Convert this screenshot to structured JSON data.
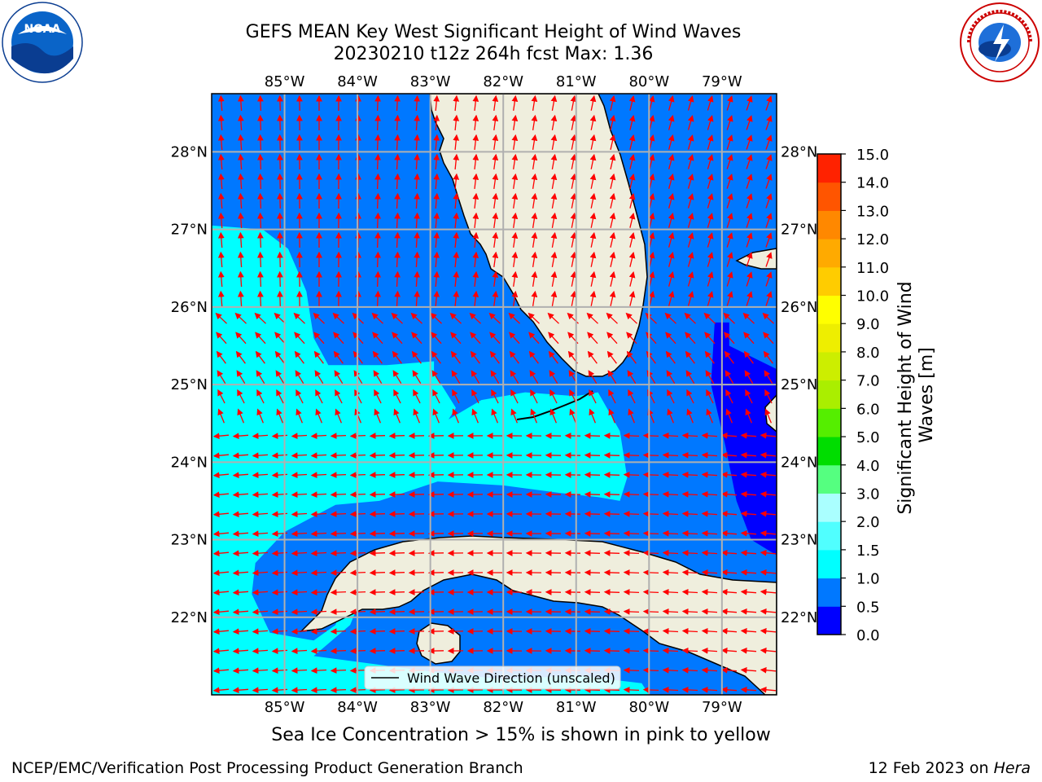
{
  "title": {
    "line1": "GEFS MEAN Key West Significant Height of Wind Waves",
    "line2": "20230210 t12z 264h fcst   Max: 1.36"
  },
  "logos": {
    "left": {
      "icon": "noaa-logo",
      "text": "NOAA",
      "ring_text": "NATIONAL OCEANIC AND ATMOSPHERIC ADMINISTRATION · U.S. DEPARTMENT OF COMMERCE"
    },
    "right": {
      "icon": "nws-logo",
      "ring_text": "NATIONAL WEATHER SERVICE"
    }
  },
  "map": {
    "lon_range": [
      -86.0,
      -78.25
    ],
    "lat_range": [
      21.0,
      28.75
    ],
    "lon_ticks": [
      -85,
      -84,
      -83,
      -82,
      -81,
      -80,
      -79
    ],
    "lon_tick_labels": [
      "85°W",
      "84°W",
      "83°W",
      "82°W",
      "81°W",
      "80°W",
      "79°W"
    ],
    "lat_ticks": [
      22,
      23,
      24,
      25,
      26,
      27,
      28
    ],
    "lat_tick_labels": [
      "22°N",
      "23°N",
      "24°N",
      "25°N",
      "26°N",
      "27°N",
      "28°N"
    ],
    "legend_label": "Wind Wave Direction (unscaled)",
    "colors": {
      "land": "#efeedd",
      "gridline": "#b0b0b0",
      "arrow": "#ff0000",
      "coast": "#000000"
    }
  },
  "colorbar": {
    "label": "Significant Height of Wind Waves [m]",
    "ticks": [
      "0.0",
      "0.5",
      "1.0",
      "1.5",
      "2.0",
      "3.0",
      "4.0",
      "5.0",
      "6.0",
      "7.0",
      "8.0",
      "9.0",
      "10.0",
      "11.0",
      "12.0",
      "13.0",
      "14.0",
      "15.0"
    ],
    "colors": [
      "#0000ff",
      "#0078ff",
      "#00ffff",
      "#50ffff",
      "#aaffff",
      "#55ff80",
      "#00dd00",
      "#55ee00",
      "#aaee00",
      "#ccee00",
      "#eeee00",
      "#ffff00",
      "#ffcc00",
      "#ffaa00",
      "#ff8800",
      "#ff5500",
      "#ff2200"
    ]
  },
  "chart_data": {
    "type": "heatmap",
    "variable": "Significant Height of Wind Waves [m]",
    "max_value": 1.36,
    "levels": [
      0.0,
      0.5,
      1.0,
      1.5,
      2.0,
      3.0,
      4.0,
      5.0,
      6.0,
      7.0,
      8.0,
      9.0,
      10.0,
      11.0,
      12.0,
      13.0,
      14.0,
      15.0
    ],
    "regions": [
      {
        "band": "0.5-1.0",
        "color": "#0078ff",
        "polygon_lonlat": [
          [
            -86.0,
            28.75
          ],
          [
            -83.1,
            28.75
          ],
          [
            -83.1,
            28.5
          ],
          [
            -83.0,
            28.3
          ],
          [
            -82.9,
            28.0
          ],
          [
            -82.8,
            27.6
          ],
          [
            -82.6,
            27.2
          ],
          [
            -82.3,
            26.6
          ],
          [
            -81.95,
            26.05
          ],
          [
            -81.6,
            25.4
          ],
          [
            -81.4,
            25.2
          ],
          [
            -81.7,
            24.9
          ],
          [
            -82.3,
            24.8
          ],
          [
            -82.75,
            24.55
          ],
          [
            -82.65,
            24.7
          ],
          [
            -82.95,
            25.15
          ],
          [
            -82.95,
            25.3
          ],
          [
            -83.6,
            25.25
          ],
          [
            -84.4,
            25.25
          ],
          [
            -84.6,
            25.6
          ],
          [
            -84.7,
            26.2
          ],
          [
            -84.95,
            26.75
          ],
          [
            -85.3,
            27.0
          ],
          [
            -85.9,
            27.05
          ],
          [
            -86.0,
            27.05
          ]
        ]
      },
      {
        "band": "1.0-1.5",
        "color": "#00ffff",
        "polygon_lonlat": [
          [
            -86.0,
            27.05
          ],
          [
            -85.3,
            27.0
          ],
          [
            -84.95,
            26.75
          ],
          [
            -84.7,
            26.2
          ],
          [
            -84.6,
            25.6
          ],
          [
            -84.4,
            25.25
          ],
          [
            -83.6,
            25.25
          ],
          [
            -82.95,
            25.3
          ],
          [
            -82.95,
            25.15
          ],
          [
            -82.65,
            24.7
          ],
          [
            -82.75,
            24.55
          ],
          [
            -82.3,
            24.8
          ],
          [
            -81.7,
            24.9
          ],
          [
            -81.0,
            24.85
          ],
          [
            -80.7,
            24.9
          ],
          [
            -80.4,
            24.4
          ],
          [
            -80.3,
            23.8
          ],
          [
            -80.4,
            23.5
          ],
          [
            -80.7,
            23.55
          ],
          [
            -81.2,
            23.6
          ],
          [
            -82.0,
            23.7
          ],
          [
            -82.9,
            23.75
          ],
          [
            -83.7,
            23.5
          ],
          [
            -84.3,
            23.45
          ],
          [
            -85.0,
            23.1
          ],
          [
            -85.4,
            22.7
          ],
          [
            -85.45,
            22.3
          ],
          [
            -85.2,
            21.8
          ],
          [
            -84.6,
            21.7
          ],
          [
            -84.3,
            21.9
          ],
          [
            -84.2,
            22.2
          ],
          [
            -83.8,
            22.6
          ],
          [
            -84.1,
            21.9
          ],
          [
            -84.6,
            21.5
          ],
          [
            -83.0,
            21.3
          ],
          [
            -82.0,
            21.2
          ],
          [
            -81.0,
            21.25
          ],
          [
            -80.1,
            21.15
          ],
          [
            -80.0,
            21.0
          ],
          [
            -86.0,
            21.0
          ]
        ]
      },
      {
        "band": "0.0-0.5",
        "color": "#0000ff",
        "polygon_lonlat": [
          [
            -79.1,
            25.8
          ],
          [
            -78.9,
            25.8
          ],
          [
            -78.9,
            25.5
          ],
          [
            -78.25,
            25.2
          ],
          [
            -78.25,
            22.8
          ],
          [
            -78.6,
            23.0
          ],
          [
            -78.8,
            23.5
          ],
          [
            -78.95,
            24.2
          ],
          [
            -79.15,
            25.0
          ]
        ]
      }
    ],
    "arrow_field": "Wind Wave Direction (unscaled)"
  },
  "notes": {
    "ice": "Sea Ice Concentration > 15% is shown in pink to yellow"
  },
  "footer": {
    "left": "NCEP/EMC/Verification Post Processing Product Generation Branch",
    "right_date": "12 Feb 2023 on ",
    "right_host": "Hera"
  }
}
